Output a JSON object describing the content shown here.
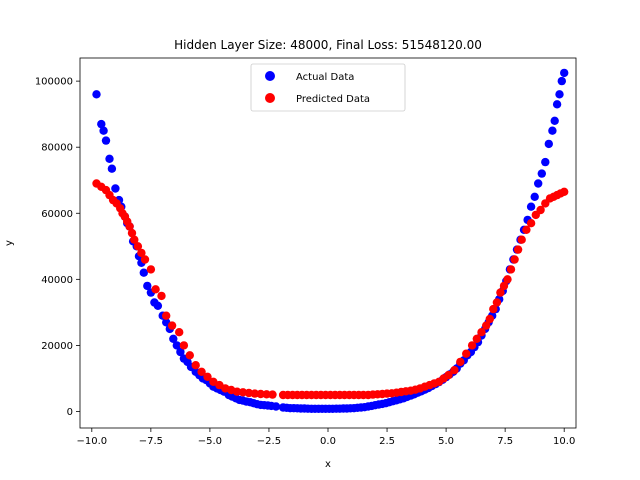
{
  "chart_data": {
    "type": "scatter",
    "title": "Hidden Layer Size: 48000, Final Loss: 51548120.00",
    "xlabel": "x",
    "ylabel": "y",
    "xlim": [
      -10.5,
      10.5
    ],
    "ylim": [
      -5000,
      107000
    ],
    "xticks": [
      -10.0,
      -7.5,
      -5.0,
      -2.5,
      0.0,
      2.5,
      5.0,
      7.5,
      10.0
    ],
    "xtick_labels": [
      "−10.0",
      "−7.5",
      "−5.0",
      "−2.5",
      "0.0",
      "2.5",
      "5.0",
      "7.5",
      "10.0"
    ],
    "yticks": [
      0,
      20000,
      40000,
      60000,
      80000,
      100000
    ],
    "ytick_labels": [
      "0",
      "20000",
      "40000",
      "60000",
      "80000",
      "100000"
    ],
    "grid": false,
    "legend": "upper-center",
    "series": [
      {
        "name": "Actual Data",
        "color": "#0000ff",
        "x": [
          -9.8,
          -9.6,
          -9.5,
          -9.4,
          -9.25,
          -9.15,
          -9.0,
          -8.85,
          -8.75,
          -8.6,
          -8.5,
          -8.4,
          -8.25,
          -8.1,
          -8.0,
          -7.9,
          -7.8,
          -7.65,
          -7.5,
          -7.35,
          -7.2,
          -7.0,
          -6.85,
          -6.7,
          -6.55,
          -6.4,
          -6.25,
          -6.1,
          -5.95,
          -5.8,
          -5.6,
          -5.45,
          -5.3,
          -5.15,
          -5.0,
          -4.85,
          -4.7,
          -4.55,
          -4.4,
          -4.2,
          -4.05,
          -3.9,
          -3.75,
          -3.6,
          -3.45,
          -3.3,
          -3.15,
          -3.0,
          -2.85,
          -2.7,
          -2.55,
          -2.4,
          -2.2,
          -1.9,
          -1.75,
          -1.6,
          -1.45,
          -1.3,
          -1.15,
          -1.0,
          -0.85,
          -0.7,
          -0.55,
          -0.4,
          -0.25,
          -0.1,
          0.05,
          0.2,
          0.35,
          0.5,
          0.65,
          0.8,
          0.95,
          1.1,
          1.25,
          1.4,
          1.55,
          1.7,
          1.85,
          2.0,
          2.15,
          2.3,
          2.45,
          2.6,
          2.75,
          2.9,
          3.05,
          3.2,
          3.35,
          3.5,
          3.65,
          3.8,
          3.95,
          4.1,
          4.25,
          4.4,
          4.55,
          4.7,
          4.85,
          5.0,
          5.15,
          5.3,
          5.45,
          5.6,
          5.75,
          5.9,
          6.05,
          6.2,
          6.35,
          6.5,
          6.65,
          6.8,
          6.95,
          7.1,
          7.25,
          7.4,
          7.55,
          7.7,
          7.85,
          8.0,
          8.15,
          8.3,
          8.45,
          8.6,
          8.75,
          8.9,
          9.05,
          9.2,
          9.35,
          9.5,
          9.6,
          9.7,
          9.8,
          9.9,
          10.0
        ],
        "y": [
          96000,
          87000,
          85000,
          82000,
          76500,
          73500,
          67500,
          64000,
          62000,
          59000,
          57000,
          56000,
          51500,
          50000,
          47000,
          45000,
          42000,
          38000,
          36000,
          33000,
          32000,
          29000,
          27000,
          25000,
          22000,
          20000,
          18000,
          16000,
          15000,
          13500,
          12000,
          11000,
          10000,
          9500,
          8500,
          7500,
          7000,
          6500,
          6000,
          5000,
          4500,
          4000,
          3500,
          3300,
          3000,
          2800,
          2500,
          2200,
          2000,
          1900,
          1800,
          1700,
          1500,
          1200,
          1100,
          1000,
          1000,
          950,
          900,
          900,
          850,
          800,
          800,
          800,
          800,
          800,
          800,
          800,
          850,
          850,
          900,
          900,
          950,
          1000,
          1100,
          1200,
          1300,
          1500,
          1700,
          1900,
          2100,
          2300,
          2500,
          2800,
          3100,
          3400,
          3700,
          4000,
          4400,
          4800,
          5200,
          5700,
          6100,
          6600,
          7100,
          7700,
          8300,
          8900,
          9600,
          10400,
          11200,
          12000,
          13000,
          14500,
          15500,
          17000,
          18000,
          19500,
          21000,
          23000,
          25000,
          27000,
          29000,
          31000,
          34000,
          36500,
          39500,
          43000,
          46000,
          49000,
          52000,
          55000,
          58000,
          62000,
          65000,
          69000,
          72000,
          75500,
          81000,
          85000,
          88000,
          93000,
          96000,
          100000,
          102500
        ]
      },
      {
        "name": "Predicted Data",
        "color": "#ff0000",
        "x": [
          -9.8,
          -9.6,
          -9.4,
          -9.25,
          -9.1,
          -8.95,
          -8.8,
          -8.7,
          -8.6,
          -8.5,
          -8.4,
          -8.3,
          -8.2,
          -8.05,
          -7.9,
          -7.75,
          -7.5,
          -7.3,
          -7.05,
          -6.85,
          -6.6,
          -6.3,
          -6.1,
          -5.85,
          -5.6,
          -5.35,
          -5.1,
          -4.85,
          -4.6,
          -4.35,
          -4.1,
          -3.85,
          -3.6,
          -3.35,
          -3.1,
          -2.85,
          -2.6,
          -2.35,
          -1.9,
          -1.7,
          -1.5,
          -1.3,
          -1.1,
          -0.9,
          -0.7,
          -0.5,
          -0.3,
          -0.1,
          0.1,
          0.3,
          0.5,
          0.7,
          0.9,
          1.1,
          1.3,
          1.5,
          1.7,
          1.9,
          2.1,
          2.3,
          2.5,
          2.7,
          2.9,
          3.1,
          3.3,
          3.5,
          3.7,
          3.9,
          4.1,
          4.3,
          4.5,
          4.7,
          4.9,
          5.1,
          5.35,
          5.6,
          5.85,
          6.1,
          6.3,
          6.5,
          6.7,
          6.85,
          7.0,
          7.15,
          7.3,
          7.45,
          7.6,
          7.75,
          7.9,
          8.05,
          8.2,
          8.4,
          8.6,
          8.8,
          9.0,
          9.2,
          9.4,
          9.55,
          9.7,
          9.85,
          10.0
        ],
        "y": [
          69000,
          68000,
          67000,
          65500,
          64000,
          63000,
          61500,
          60000,
          59000,
          57500,
          56000,
          54000,
          52000,
          50000,
          48000,
          46000,
          43000,
          37000,
          35000,
          29000,
          26000,
          24000,
          20000,
          17000,
          14000,
          12000,
          10500,
          9000,
          8000,
          7000,
          6500,
          6000,
          5800,
          5600,
          5400,
          5300,
          5200,
          5100,
          5000,
          5000,
          5000,
          5000,
          5000,
          5000,
          5000,
          5000,
          5000,
          5000,
          5000,
          5000,
          5000,
          5000,
          5000,
          5000,
          5000,
          5000,
          5000,
          5100,
          5200,
          5300,
          5400,
          5500,
          5700,
          5900,
          6100,
          6300,
          6600,
          7000,
          7500,
          8000,
          8500,
          9000,
          10000,
          11000,
          12500,
          15000,
          17500,
          20000,
          22000,
          24000,
          26000,
          28000,
          31000,
          33000,
          36000,
          38000,
          40000,
          43000,
          46000,
          49000,
          52000,
          55000,
          57000,
          59500,
          61000,
          63000,
          64500,
          65000,
          65500,
          66000,
          66500
        ]
      }
    ]
  }
}
